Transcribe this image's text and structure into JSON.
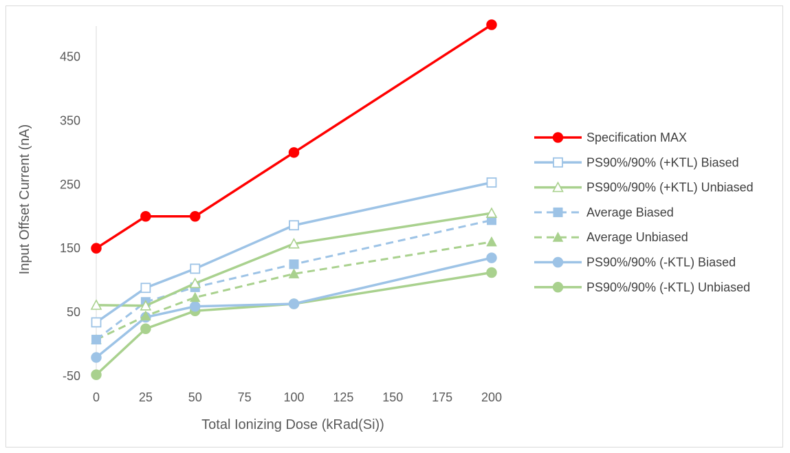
{
  "chart_data": {
    "type": "line",
    "title": "",
    "xlabel": "Total Ionizing Dose (kRad(Si))",
    "ylabel": "Input Offset Current (nA)",
    "xlim": [
      0,
      200
    ],
    "ylim": [
      -50,
      500
    ],
    "x_ticks": [
      0,
      25,
      50,
      75,
      100,
      125,
      150,
      175,
      200
    ],
    "y_ticks": [
      -50,
      50,
      150,
      250,
      350,
      450
    ],
    "y_tick_labels": [
      "-50",
      "50",
      "150",
      "250",
      "350",
      "450"
    ],
    "grid": false,
    "legend_position": "right",
    "series": [
      {
        "name": "Specification MAX",
        "x": [
          0,
          25,
          50,
          100,
          200
        ],
        "y": [
          150,
          200,
          200,
          300,
          500
        ],
        "color": "#ff0000",
        "dash": "solid",
        "marker": "circle-filled"
      },
      {
        "name": "PS90%/90% (+KTL) Biased",
        "x": [
          0,
          25,
          50,
          100,
          200
        ],
        "y": [
          34,
          88,
          118,
          186,
          253
        ],
        "color": "#9dc3e6",
        "dash": "solid",
        "marker": "square-open"
      },
      {
        "name": "PS90%/90% (+KTL) Unbiased",
        "x": [
          0,
          25,
          50,
          100,
          200
        ],
        "y": [
          61,
          60,
          95,
          157,
          205
        ],
        "color": "#a9d18e",
        "dash": "solid",
        "marker": "triangle-open"
      },
      {
        "name": "Average Biased",
        "x": [
          0,
          25,
          50,
          100,
          200
        ],
        "y": [
          7,
          66,
          89,
          125,
          194
        ],
        "color": "#9dc3e6",
        "dash": "dashed",
        "marker": "square-filled"
      },
      {
        "name": "Average Unbiased",
        "x": [
          0,
          25,
          50,
          100,
          200
        ],
        "y": [
          7,
          44,
          73,
          110,
          160
        ],
        "color": "#a9d18e",
        "dash": "dashed",
        "marker": "triangle-filled"
      },
      {
        "name": "PS90%/90% (-KTL) Biased",
        "x": [
          0,
          25,
          50,
          100,
          200
        ],
        "y": [
          -21,
          42,
          59,
          63,
          135
        ],
        "color": "#9dc3e6",
        "dash": "solid",
        "marker": "circle-filled"
      },
      {
        "name": "PS90%/90% (-KTL) Unbiased",
        "x": [
          0,
          25,
          50,
          100,
          200
        ],
        "y": [
          -48,
          24,
          52,
          63,
          112
        ],
        "color": "#a9d18e",
        "dash": "solid",
        "marker": "circle-filled"
      }
    ]
  }
}
